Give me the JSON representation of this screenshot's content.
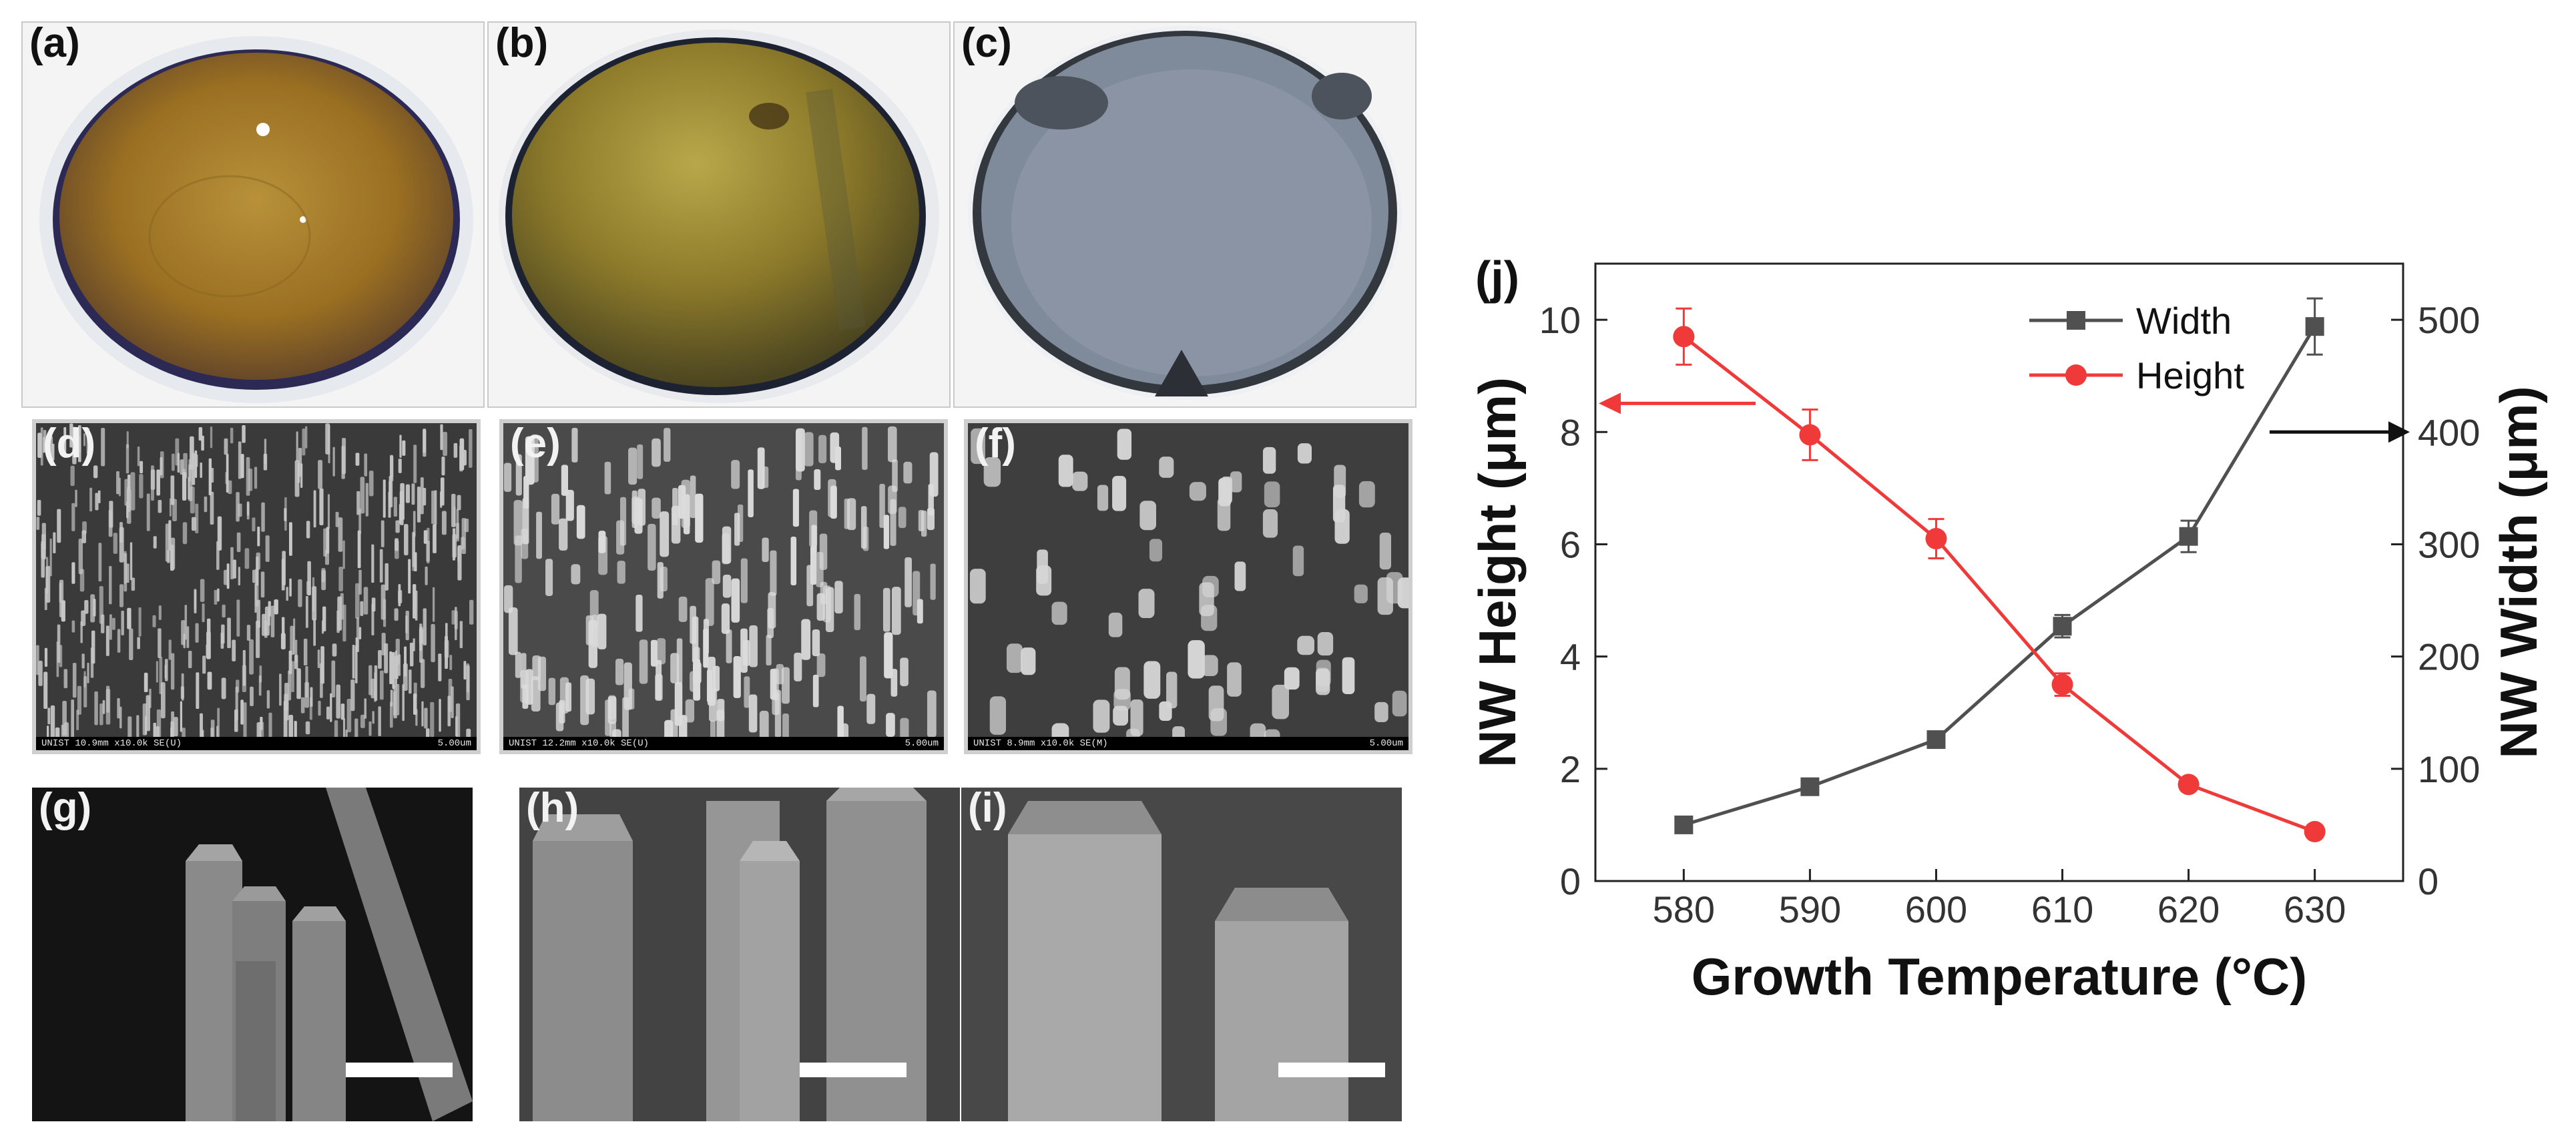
{
  "panel_labels": {
    "a": "(a)",
    "b": "(b)",
    "c": "(c)",
    "d": "(d)",
    "e": "(e)",
    "f": "(f)",
    "g": "(g)",
    "h": "(h)",
    "i": "(i)",
    "j": "(j)"
  },
  "sem_info": {
    "d": {
      "left": "UNIST 10.9mm x10.0k SE(U)",
      "right": "5.00um"
    },
    "e": {
      "left": "UNIST 12.2mm x10.0k SE(U)",
      "right": "5.00um"
    },
    "f": {
      "left": "UNIST 8.9mm x10.0k SE(M)",
      "right": "5.00um"
    }
  },
  "colors": {
    "width_series": "#505050",
    "height_series": "#f03a3a",
    "axis": "#222222"
  },
  "chart_data": {
    "type": "line",
    "x": [
      580,
      590,
      600,
      610,
      620,
      630
    ],
    "xlabel": "Growth Temperature (°C)",
    "x_ticks": [
      580,
      590,
      600,
      610,
      620,
      630
    ],
    "xlim": [
      573,
      637
    ],
    "y_left": {
      "label": "NW Height (μm)",
      "lim": [
        0,
        11
      ],
      "ticks": [
        0,
        2,
        4,
        6,
        8,
        10
      ]
    },
    "y_right": {
      "label": "NW Width (μm)",
      "lim": [
        0,
        550
      ],
      "ticks": [
        0,
        100,
        200,
        300,
        400,
        500
      ]
    },
    "series": [
      {
        "name": "Width",
        "axis": "right",
        "marker": "square",
        "color": "#505050",
        "values": [
          50,
          84,
          126,
          227,
          307,
          494
        ],
        "errors": [
          4,
          5,
          6,
          10,
          14,
          25
        ]
      },
      {
        "name": "Height",
        "axis": "left",
        "marker": "circle",
        "color": "#f03a3a",
        "values": [
          9.7,
          7.95,
          6.1,
          3.5,
          1.72,
          0.88
        ],
        "errors": [
          0.5,
          0.45,
          0.35,
          0.2,
          0.1,
          0.05
        ]
      }
    ],
    "legend_position": "top-right",
    "axis_arrows": [
      {
        "series": "Height",
        "direction": "left"
      },
      {
        "series": "Width",
        "direction": "right"
      }
    ]
  }
}
